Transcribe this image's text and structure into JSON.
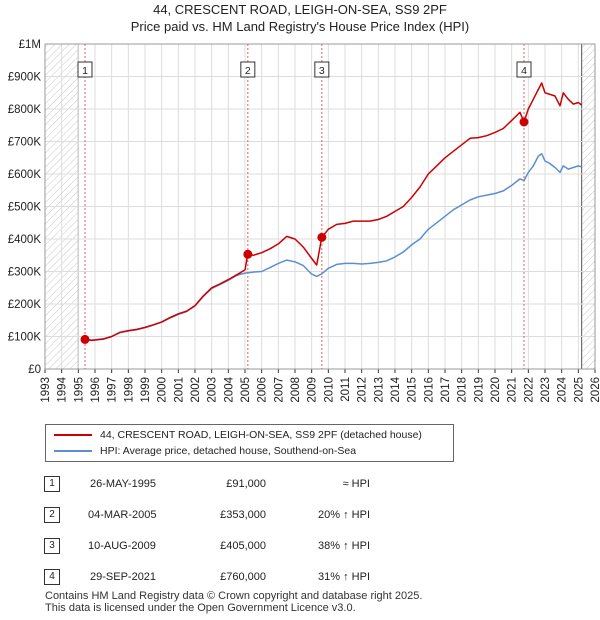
{
  "title_line1": "44, CRESCENT ROAD, LEIGH-ON-SEA, SS9 2PF",
  "title_line2": "Price paid vs. HM Land Registry's House Price Index (HPI)",
  "colors": {
    "red": "#cc0000",
    "blue": "#5b8fd0",
    "grid": "#dddddd",
    "hatch": "#cccccc"
  },
  "chart_data": {
    "type": "line",
    "xlim": [
      1993,
      2026
    ],
    "ylim": [
      0,
      1000000
    ],
    "y_ticks": [
      {
        "v": 0,
        "label": "£0"
      },
      {
        "v": 100000,
        "label": "£100K"
      },
      {
        "v": 200000,
        "label": "£200K"
      },
      {
        "v": 300000,
        "label": "£300K"
      },
      {
        "v": 400000,
        "label": "£400K"
      },
      {
        "v": 500000,
        "label": "£500K"
      },
      {
        "v": 600000,
        "label": "£600K"
      },
      {
        "v": 700000,
        "label": "£700K"
      },
      {
        "v": 800000,
        "label": "£800K"
      },
      {
        "v": 900000,
        "label": "£900K"
      },
      {
        "v": 1000000,
        "label": "£1M"
      }
    ],
    "x_ticks": [
      "1993",
      "1994",
      "1995",
      "1996",
      "1997",
      "1998",
      "1999",
      "2000",
      "2001",
      "2002",
      "2003",
      "2004",
      "2005",
      "2006",
      "2007",
      "2008",
      "2009",
      "2010",
      "2011",
      "2012",
      "2013",
      "2014",
      "2015",
      "2016",
      "2017",
      "2018",
      "2019",
      "2020",
      "2021",
      "2022",
      "2023",
      "2024",
      "2025",
      "2026"
    ],
    "hatch_ranges": [
      [
        1993,
        1995.0
      ],
      [
        2025.2,
        2026
      ]
    ],
    "series": [
      {
        "name": "44, CRESCENT ROAD, LEIGH-ON-SEA, SS9 2PF (detached house)",
        "color": "#cc0000",
        "points": [
          [
            1995.4,
            91000
          ],
          [
            1995.8,
            88000
          ],
          [
            1996.5,
            92000
          ],
          [
            1997.0,
            100000
          ],
          [
            1997.5,
            113000
          ],
          [
            1998.0,
            118000
          ],
          [
            1998.5,
            122000
          ],
          [
            1999.0,
            128000
          ],
          [
            1999.5,
            136000
          ],
          [
            2000.0,
            145000
          ],
          [
            2000.5,
            158000
          ],
          [
            2001.0,
            170000
          ],
          [
            2001.5,
            178000
          ],
          [
            2002.0,
            195000
          ],
          [
            2002.5,
            225000
          ],
          [
            2003.0,
            250000
          ],
          [
            2003.5,
            262000
          ],
          [
            2004.0,
            275000
          ],
          [
            2004.5,
            290000
          ],
          [
            2005.0,
            305000
          ],
          [
            2005.17,
            353000
          ],
          [
            2005.5,
            350000
          ],
          [
            2006.0,
            358000
          ],
          [
            2006.5,
            370000
          ],
          [
            2007.0,
            385000
          ],
          [
            2007.5,
            408000
          ],
          [
            2008.0,
            400000
          ],
          [
            2008.5,
            375000
          ],
          [
            2009.0,
            340000
          ],
          [
            2009.3,
            320000
          ],
          [
            2009.61,
            405000
          ],
          [
            2010.0,
            430000
          ],
          [
            2010.5,
            445000
          ],
          [
            2011.0,
            448000
          ],
          [
            2011.5,
            455000
          ],
          [
            2012.0,
            455000
          ],
          [
            2012.5,
            455000
          ],
          [
            2013.0,
            460000
          ],
          [
            2013.5,
            470000
          ],
          [
            2014.0,
            485000
          ],
          [
            2014.5,
            500000
          ],
          [
            2015.0,
            528000
          ],
          [
            2015.5,
            560000
          ],
          [
            2016.0,
            600000
          ],
          [
            2016.5,
            625000
          ],
          [
            2017.0,
            650000
          ],
          [
            2017.5,
            670000
          ],
          [
            2018.0,
            690000
          ],
          [
            2018.5,
            710000
          ],
          [
            2019.0,
            712000
          ],
          [
            2019.5,
            718000
          ],
          [
            2020.0,
            728000
          ],
          [
            2020.5,
            740000
          ],
          [
            2021.0,
            765000
          ],
          [
            2021.5,
            790000
          ],
          [
            2021.74,
            760000
          ],
          [
            2022.0,
            800000
          ],
          [
            2022.3,
            830000
          ],
          [
            2022.6,
            860000
          ],
          [
            2022.8,
            880000
          ],
          [
            2023.0,
            850000
          ],
          [
            2023.3,
            845000
          ],
          [
            2023.6,
            840000
          ],
          [
            2023.9,
            810000
          ],
          [
            2024.1,
            850000
          ],
          [
            2024.4,
            830000
          ],
          [
            2024.7,
            815000
          ],
          [
            2025.0,
            820000
          ],
          [
            2025.2,
            812000
          ]
        ]
      },
      {
        "name": "HPI: Average price, detached house, Southend-on-Sea",
        "color": "#5b8fd0",
        "points": [
          [
            1995.4,
            91000
          ],
          [
            1995.8,
            89000
          ],
          [
            1996.5,
            93000
          ],
          [
            1997.0,
            100000
          ],
          [
            1997.5,
            112000
          ],
          [
            1998.0,
            117000
          ],
          [
            1998.5,
            121000
          ],
          [
            1999.0,
            127000
          ],
          [
            1999.5,
            135000
          ],
          [
            2000.0,
            144000
          ],
          [
            2000.5,
            157000
          ],
          [
            2001.0,
            168000
          ],
          [
            2001.5,
            177000
          ],
          [
            2002.0,
            194000
          ],
          [
            2002.5,
            223000
          ],
          [
            2003.0,
            248000
          ],
          [
            2003.5,
            260000
          ],
          [
            2004.0,
            273000
          ],
          [
            2004.5,
            288000
          ],
          [
            2005.0,
            295000
          ],
          [
            2005.5,
            298000
          ],
          [
            2006.0,
            300000
          ],
          [
            2006.5,
            312000
          ],
          [
            2007.0,
            325000
          ],
          [
            2007.5,
            335000
          ],
          [
            2008.0,
            330000
          ],
          [
            2008.5,
            318000
          ],
          [
            2009.0,
            292000
          ],
          [
            2009.3,
            285000
          ],
          [
            2009.61,
            293000
          ],
          [
            2010.0,
            310000
          ],
          [
            2010.5,
            322000
          ],
          [
            2011.0,
            325000
          ],
          [
            2011.5,
            325000
          ],
          [
            2012.0,
            323000
          ],
          [
            2012.5,
            325000
          ],
          [
            2013.0,
            328000
          ],
          [
            2013.5,
            333000
          ],
          [
            2014.0,
            345000
          ],
          [
            2014.5,
            360000
          ],
          [
            2015.0,
            382000
          ],
          [
            2015.5,
            400000
          ],
          [
            2016.0,
            430000
          ],
          [
            2016.5,
            450000
          ],
          [
            2017.0,
            470000
          ],
          [
            2017.5,
            490000
          ],
          [
            2018.0,
            505000
          ],
          [
            2018.5,
            520000
          ],
          [
            2019.0,
            530000
          ],
          [
            2019.5,
            535000
          ],
          [
            2020.0,
            540000
          ],
          [
            2020.5,
            548000
          ],
          [
            2021.0,
            565000
          ],
          [
            2021.5,
            585000
          ],
          [
            2021.74,
            580000
          ],
          [
            2022.0,
            605000
          ],
          [
            2022.3,
            625000
          ],
          [
            2022.6,
            655000
          ],
          [
            2022.8,
            662000
          ],
          [
            2023.0,
            640000
          ],
          [
            2023.3,
            632000
          ],
          [
            2023.6,
            620000
          ],
          [
            2023.9,
            605000
          ],
          [
            2024.1,
            625000
          ],
          [
            2024.4,
            615000
          ],
          [
            2024.7,
            620000
          ],
          [
            2025.0,
            625000
          ],
          [
            2025.2,
            622000
          ]
        ]
      }
    ],
    "sales": [
      {
        "num": "1",
        "x": 1995.4,
        "price": 91000,
        "date": "26-MAY-1995",
        "price_label": "£91,000",
        "hpi": "≈ HPI"
      },
      {
        "num": "2",
        "x": 2005.17,
        "price": 353000,
        "date": "04-MAR-2005",
        "price_label": "£353,000",
        "hpi": "20% ↑ HPI"
      },
      {
        "num": "3",
        "x": 2009.61,
        "price": 405000,
        "date": "10-AUG-2009",
        "price_label": "£405,000",
        "hpi": "38% ↑ HPI"
      },
      {
        "num": "4",
        "x": 2021.74,
        "price": 760000,
        "date": "29-SEP-2021",
        "price_label": "£760,000",
        "hpi": "31% ↑ HPI"
      }
    ]
  },
  "legend": {
    "red_label": "44, CRESCENT ROAD, LEIGH-ON-SEA, SS9 2PF (detached house)",
    "blue_label": "HPI: Average price, detached house, Southend-on-Sea"
  },
  "footer": {
    "line1": "Contains HM Land Registry data © Crown copyright and database right 2025.",
    "line2": "This data is licensed under the Open Government Licence v3.0."
  }
}
